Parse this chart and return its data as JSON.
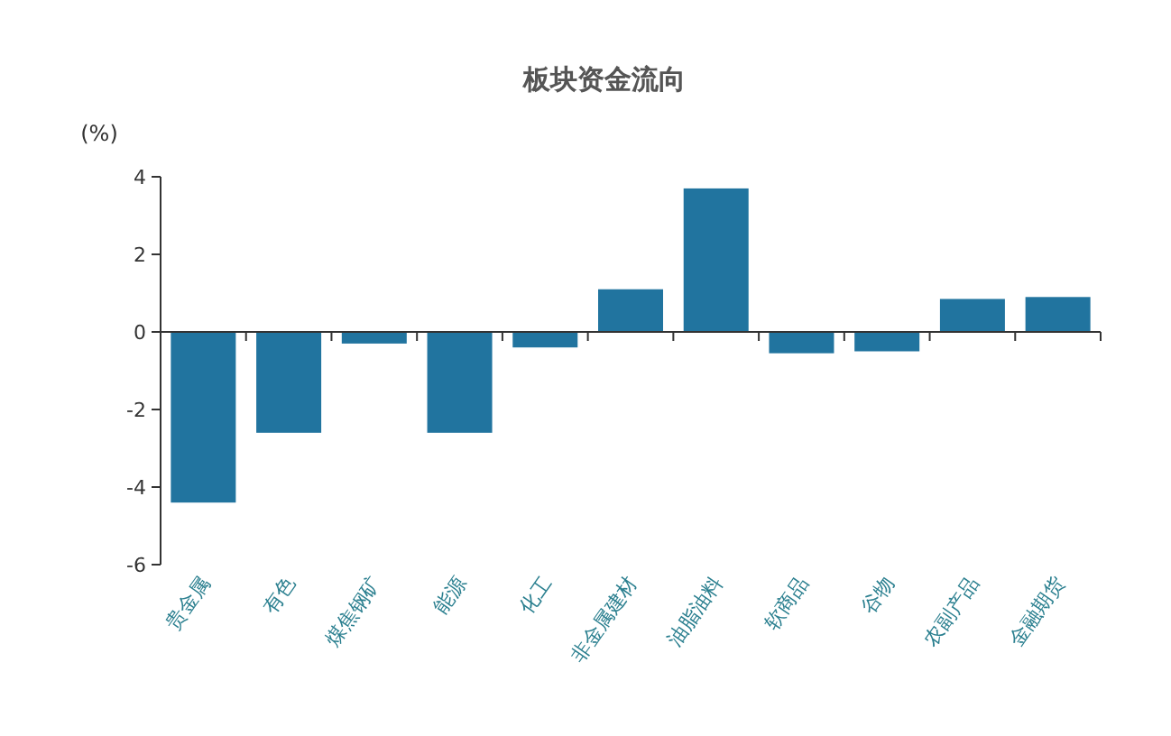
{
  "chart_data": {
    "type": "bar",
    "title": "板块资金流向",
    "ylabel": "(%)",
    "categories": [
      "贵金属",
      "有色",
      "煤焦钢矿",
      "能源",
      "化工",
      "非金属建材",
      "油脂油料",
      "软商品",
      "谷物",
      "农副产品",
      "金融期货"
    ],
    "values": [
      -4.4,
      -2.6,
      -0.3,
      -2.6,
      -0.4,
      1.1,
      3.7,
      -0.55,
      -0.5,
      0.85,
      0.9
    ],
    "color": "#21749f",
    "ylim": [
      -6,
      4
    ],
    "yticks": [
      -6,
      -4,
      -2,
      0,
      2,
      4
    ]
  }
}
